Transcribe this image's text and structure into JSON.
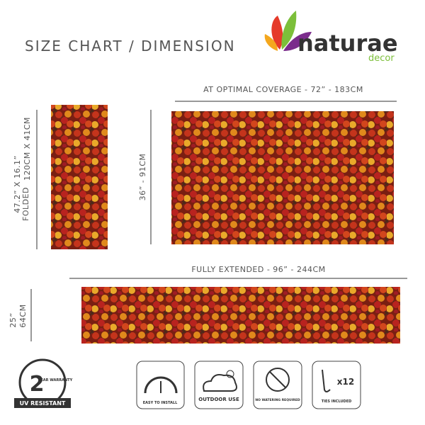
{
  "header": {
    "title": "SIZE CHART / DIMENSION"
  },
  "logo": {
    "name": "naturae",
    "tagline": "decor"
  },
  "folded": {
    "label": "FOLDED",
    "size_in": "47.2” X 16.1”",
    "size_cm": "120CM X 41CM"
  },
  "optimal": {
    "width": "AT OPTIMAL COVERAGE - 72” - 183CM",
    "height": "36” - 91CM"
  },
  "extended": {
    "width": "FULLY EXTENDED - 96” - 244CM",
    "height_in": "25”",
    "height_cm": "64CM"
  },
  "badges": [
    {
      "number": "2",
      "text": "YEAR WARRANTY",
      "label": "UV RESISTANT"
    },
    {
      "label": "EASY TO INSTALL"
    },
    {
      "label": "OUTDOOR USE"
    },
    {
      "label": "NO WATERING REQUIRED"
    },
    {
      "count": "x12",
      "label": "TIES INCLUDED"
    }
  ]
}
